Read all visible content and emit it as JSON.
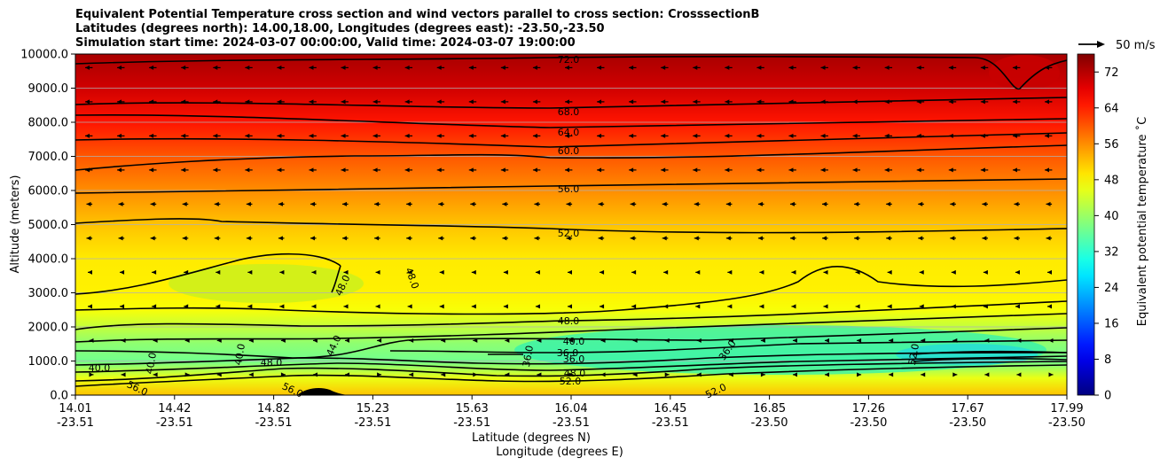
{
  "chart_data": {
    "type": "heatmap",
    "title_lines": [
      "Equivalent Potential Temperature cross section and wind vectors parallel to cross section: CrosssectionB",
      "Latitudes (degrees north): 14.00,18.00, Longitudes (degrees east): -23.50,-23.50",
      "Simulation start time: 2024-03-07 00:00:00, Valid time: 2024-03-07 19:00:00"
    ],
    "ylabel": "Altitude (meters)",
    "xlabel_lat": "Latitude (degrees N)",
    "xlabel_lon": "Longitude (degrees E)",
    "ylim": [
      0,
      10000
    ],
    "yticks": [
      "0.0",
      "1000.0",
      "2000.0",
      "3000.0",
      "4000.0",
      "5000.0",
      "6000.0",
      "7000.0",
      "8000.0",
      "9000.0",
      "10000.0"
    ],
    "xticks_lat": [
      "14.01",
      "14.42",
      "14.82",
      "15.23",
      "15.63",
      "16.04",
      "16.45",
      "16.85",
      "17.26",
      "17.67",
      "17.99"
    ],
    "xticks_lon": [
      "-23.51",
      "-23.51",
      "-23.51",
      "-23.51",
      "-23.51",
      "-23.51",
      "-23.51",
      "-23.50",
      "-23.50",
      "-23.50",
      "-23.50"
    ],
    "colorbar": {
      "label": "Equivalent potential temperature $^\\circ$C",
      "label_text": "Equivalent potential temperature ˚C",
      "min": 0,
      "max": 76,
      "ticks": [
        "0",
        "8",
        "16",
        "24",
        "32",
        "40",
        "48",
        "56",
        "64",
        "72"
      ]
    },
    "quiver_key": "50 m/s",
    "contour_labels": [
      "72.0",
      "68.0",
      "64.0",
      "60.0",
      "56.0",
      "52.0",
      "48.0",
      "48.0",
      "48.0",
      "40.0",
      "36.0",
      "36.0",
      "48.0",
      "52.0",
      "40.0",
      "40.0",
      "40.0",
      "48.0",
      "44.0",
      "56.0",
      "56.0",
      "36.0",
      "36.0",
      "52.0",
      "52.0"
    ],
    "theta_e_profile": [
      {
        "z": 0,
        "value": 52
      },
      {
        "z": 500,
        "value": 46
      },
      {
        "z": 1000,
        "value": 37
      },
      {
        "z": 1500,
        "value": 39
      },
      {
        "z": 2000,
        "value": 43
      },
      {
        "z": 2500,
        "value": 47
      },
      {
        "z": 3000,
        "value": 48.5
      },
      {
        "z": 4000,
        "value": 49
      },
      {
        "z": 5000,
        "value": 52
      },
      {
        "z": 6000,
        "value": 56
      },
      {
        "z": 7000,
        "value": 60
      },
      {
        "z": 8000,
        "value": 65
      },
      {
        "z": 9000,
        "value": 70
      },
      {
        "z": 10000,
        "value": 73
      }
    ]
  }
}
